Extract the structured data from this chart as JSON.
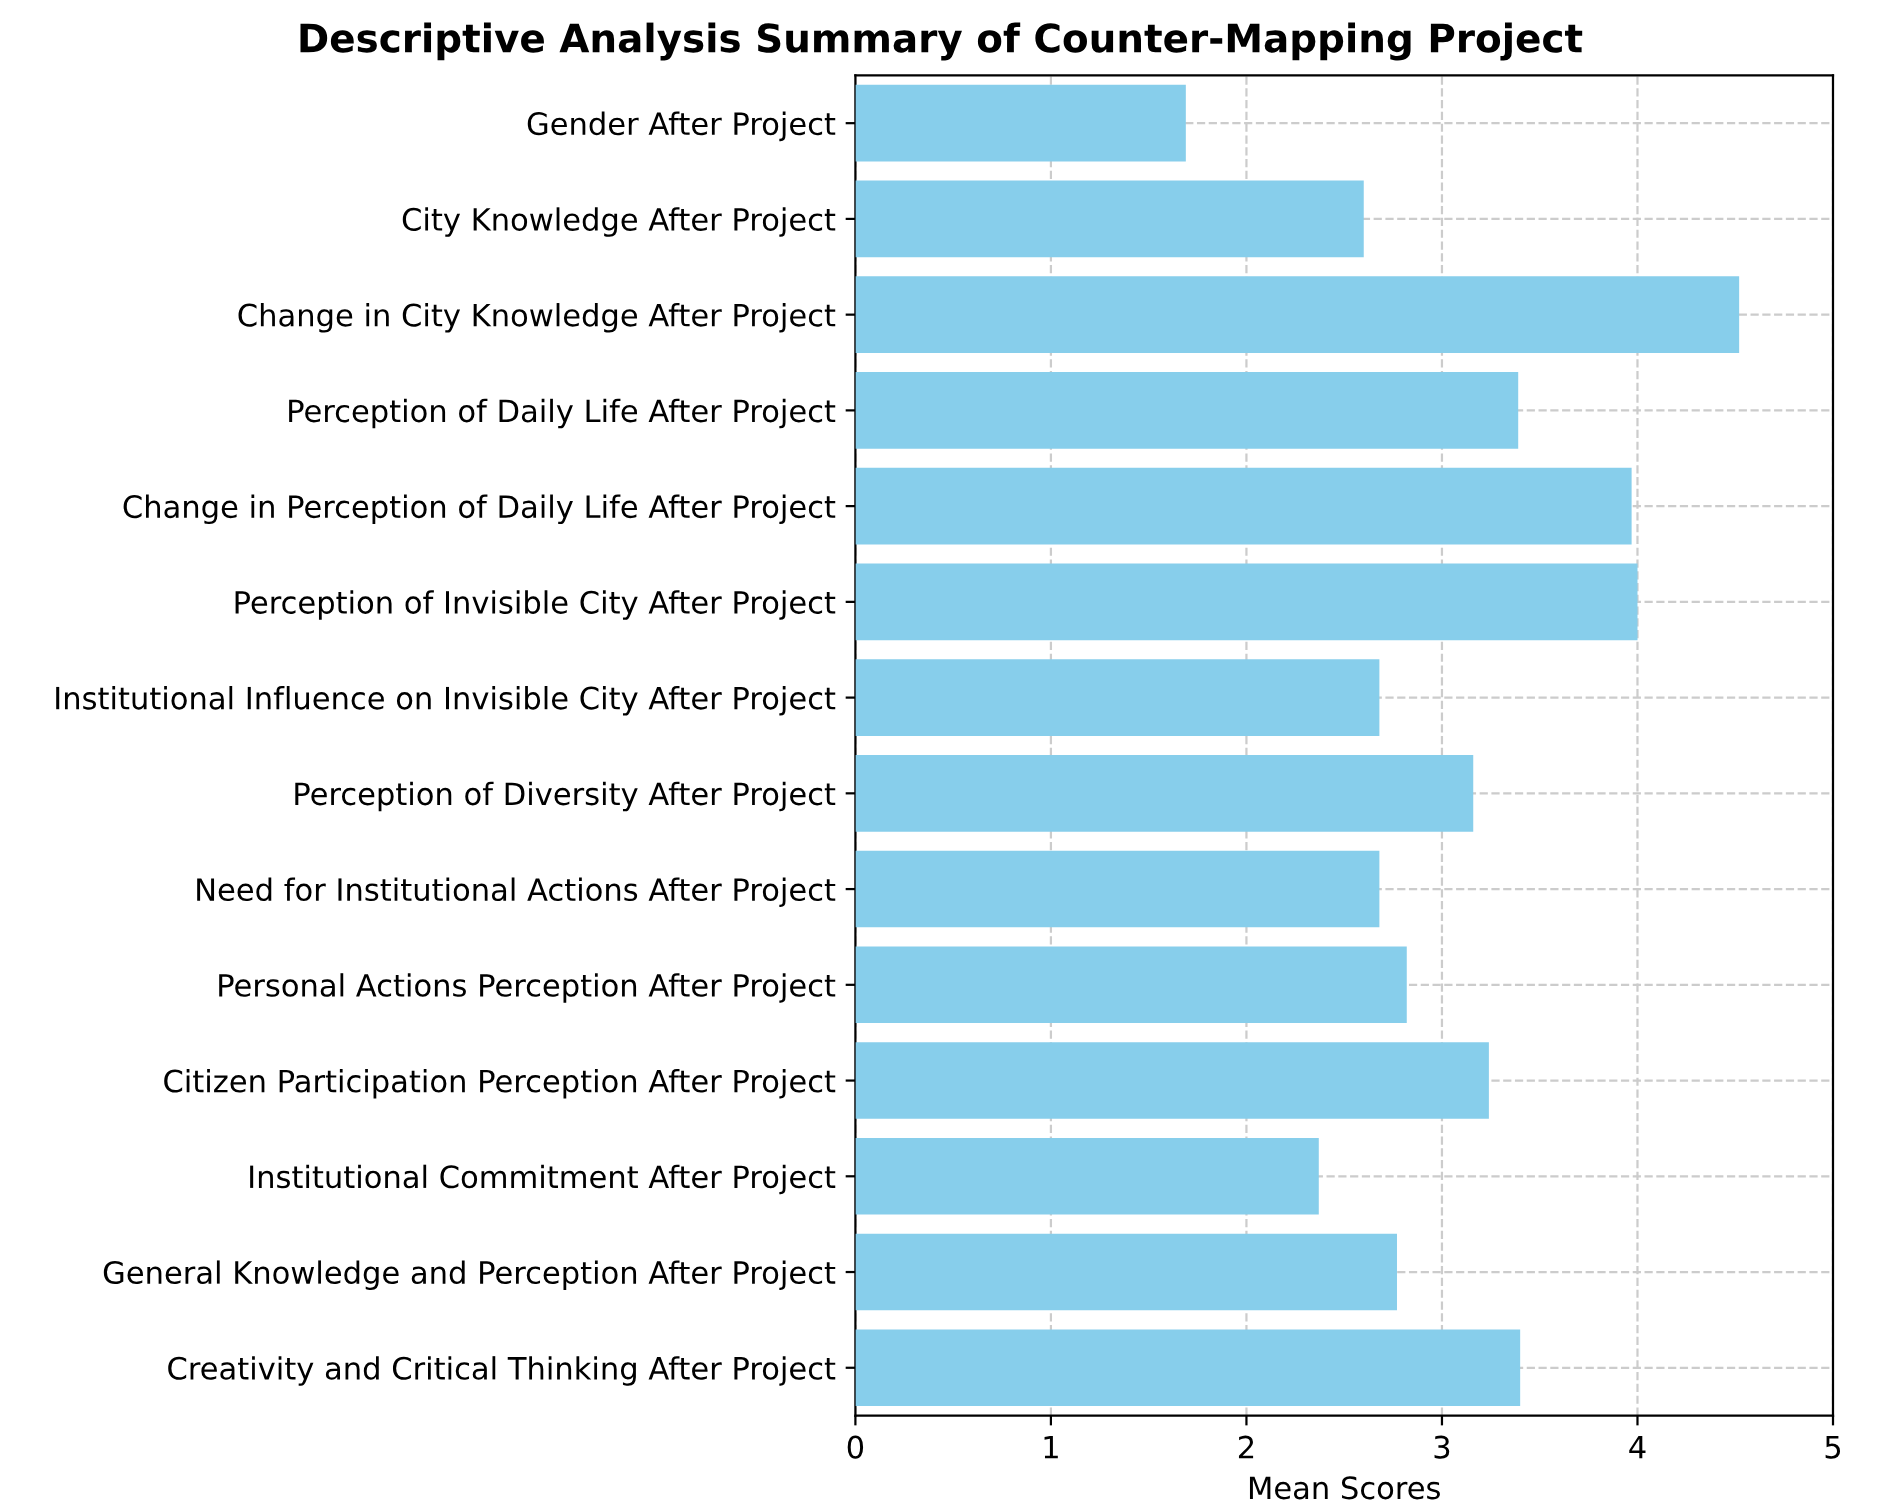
{
  "chart_data": {
    "type": "bar",
    "orientation": "horizontal",
    "title": "Descriptive Analysis Summary of Counter-Mapping Project",
    "xlabel": "Mean Scores",
    "categories": [
      "Gender After Project",
      "City Knowledge After Project",
      "Change in City Knowledge After Project",
      "Perception of Daily Life After Project",
      "Change in Perception of Daily Life After Project",
      "Perception of Invisible City After Project",
      "Institutional Influence on Invisible City After Project",
      "Perception of Diversity After Project",
      "Need for Institutional Actions After Project",
      "Personal Actions Perception After Project",
      "Citizen Participation Perception After Project",
      "Institutional Commitment After Project",
      "General Knowledge and Perception After Project",
      "Creativity and Critical Thinking After Project"
    ],
    "values": [
      1.69,
      2.6,
      4.52,
      3.39,
      3.97,
      4.0,
      2.68,
      3.16,
      2.68,
      2.82,
      3.24,
      2.37,
      2.77,
      3.4
    ],
    "color": "#87ceeb",
    "xlim": [
      0,
      5
    ],
    "xticks": [
      0,
      1,
      2,
      3,
      4,
      5
    ],
    "grid": true
  }
}
